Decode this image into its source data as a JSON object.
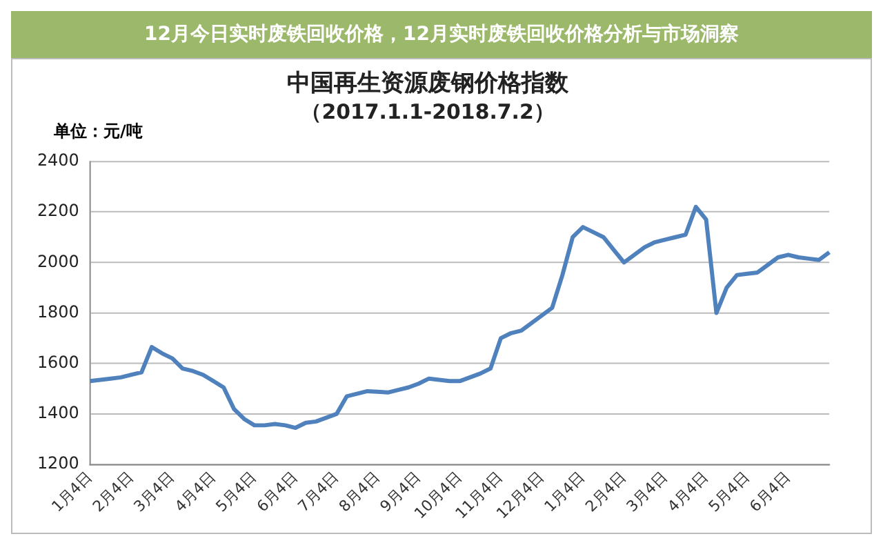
{
  "chart_data": {
    "type": "line",
    "title": "中国再生资源废钢价格指数",
    "subtitle": "（2017.1.1-2018.7.2）",
    "ylabel": "单位：元/吨",
    "annotations": [
      "12月今日实时废铁回收价格，12月实时废铁回收价格分析与市场洞察"
    ],
    "categories": [
      "1月4日",
      null,
      null,
      null,
      "2月4日",
      null,
      null,
      null,
      "3月4日",
      null,
      null,
      null,
      "4月4日",
      null,
      null,
      null,
      "5月4日",
      null,
      null,
      null,
      "6月4日",
      null,
      null,
      null,
      "7月4日",
      null,
      null,
      null,
      "8月4日",
      null,
      null,
      null,
      "9月4日",
      null,
      null,
      null,
      "10月4日",
      null,
      null,
      null,
      "11月4日",
      null,
      null,
      null,
      "12月4日",
      null,
      null,
      null,
      "1月4日",
      null,
      null,
      null,
      "2月4日",
      null,
      null,
      null,
      "3月4日",
      null,
      null,
      null,
      "4月4日",
      null,
      null,
      null,
      "5月4日",
      null,
      null,
      null,
      "6月4日",
      null,
      null,
      null,
      null
    ],
    "series": [
      {
        "color": "#4f81bd",
        "values": [
          1530,
          1535,
          1540,
          1545,
          1555,
          1565,
          1665,
          1640,
          1620,
          1580,
          1570,
          1555,
          1530,
          1505,
          1420,
          1380,
          1355,
          1355,
          1360,
          1355,
          1345,
          1365,
          1370,
          1385,
          1400,
          1470,
          1480,
          1490,
          1488,
          1485,
          1495,
          1505,
          1520,
          1540,
          1535,
          1530,
          1530,
          1545,
          1560,
          1580,
          1700,
          1720,
          1730,
          1760,
          1790,
          1820,
          1950,
          2100,
          2140,
          2120,
          2100,
          2050,
          2000,
          2030,
          2060,
          2080,
          2090,
          2100,
          2110,
          2220,
          2170,
          1800,
          1900,
          1950,
          1955,
          1960,
          1990,
          2020,
          2030,
          2020,
          2015,
          2010,
          2040
        ]
      }
    ],
    "ylim": [
      1200,
      2400
    ],
    "yticks": [
      1200,
      1400,
      1600,
      1800,
      2000,
      2200,
      2400
    ],
    "grid": "y",
    "legend": false,
    "marker": "none",
    "line_style": "solid"
  }
}
